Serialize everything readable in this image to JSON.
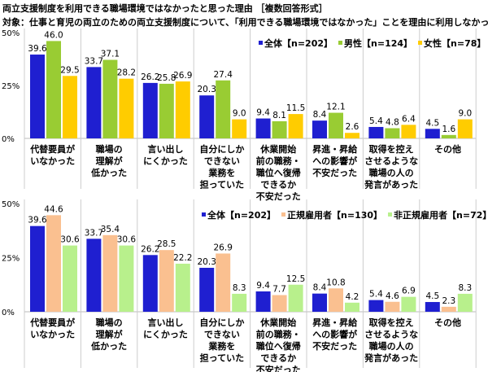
{
  "title": "両立支援制度を利用できる職場環境ではなかったと思った理由 ［複数回答形式］",
  "subtitle": "対象：仕事と育児の両立のための両立支援制度について、「利用できる職場環境ではなかった」ことを理由に利用しなかった人",
  "chart_data": [
    {
      "type": "bar",
      "ylim": [
        0,
        50
      ],
      "yticks": [
        "0%",
        "25%",
        "50%"
      ],
      "grid": false,
      "legend": "top-right",
      "categories": [
        [
          "代替要員が",
          "いなかった"
        ],
        [
          "職場の",
          "理解が",
          "低かった"
        ],
        [
          "言い出し",
          "にくかった"
        ],
        [
          "自分にしか",
          "できない",
          "業務を",
          "担っていた"
        ],
        [
          "休業開始",
          "前の職務・",
          "職位へ復帰",
          "できるか",
          "不安だった"
        ],
        [
          "昇進・昇給",
          "への影響が",
          "不安だった"
        ],
        [
          "取得を控え",
          "させるような",
          "職場の人の",
          "発言があった"
        ],
        [
          "その他"
        ]
      ],
      "series": [
        {
          "name": "全体【n=202】",
          "color": "#1f1fd0",
          "values": [
            39.6,
            33.7,
            26.2,
            20.3,
            9.4,
            8.4,
            5.4,
            4.5
          ]
        },
        {
          "name": "男性【n=124】",
          "color": "#99cc33",
          "values": [
            46.0,
            37.1,
            25.8,
            27.4,
            8.1,
            12.1,
            4.8,
            1.6
          ]
        },
        {
          "name": "女性【n=78】",
          "color": "#ffcc00",
          "values": [
            29.5,
            28.2,
            26.9,
            9.0,
            11.5,
            2.6,
            6.4,
            9.0
          ]
        }
      ]
    },
    {
      "type": "bar",
      "ylim": [
        0,
        50
      ],
      "yticks": [
        "0%",
        "25%",
        "50%"
      ],
      "grid": false,
      "legend": "top-right",
      "categories": [
        [
          "代替要員が",
          "いなかった"
        ],
        [
          "職場の",
          "理解が",
          "低かった"
        ],
        [
          "言い出し",
          "にくかった"
        ],
        [
          "自分にしか",
          "できない",
          "業務を",
          "担っていた"
        ],
        [
          "休業開始",
          "前の職務・",
          "職位へ復帰",
          "できるか",
          "不安だった"
        ],
        [
          "昇進・昇給",
          "への影響が",
          "不安だった"
        ],
        [
          "取得を控え",
          "させるような",
          "職場の人の",
          "発言があった"
        ],
        [
          "その他"
        ]
      ],
      "series": [
        {
          "name": "全体【n=202】",
          "color": "#1f1fd0",
          "values": [
            39.6,
            33.7,
            26.2,
            20.3,
            9.4,
            8.4,
            5.4,
            4.5
          ]
        },
        {
          "name": "正規雇用者【n=130】",
          "color": "#fac090",
          "values": [
            44.6,
            35.4,
            28.5,
            26.9,
            7.7,
            10.8,
            4.6,
            2.3
          ]
        },
        {
          "name": "非正規雇用者【n=72】",
          "color": "#b8f08c",
          "values": [
            30.6,
            30.6,
            22.2,
            8.3,
            12.5,
            4.2,
            6.9,
            8.3
          ]
        }
      ]
    }
  ]
}
